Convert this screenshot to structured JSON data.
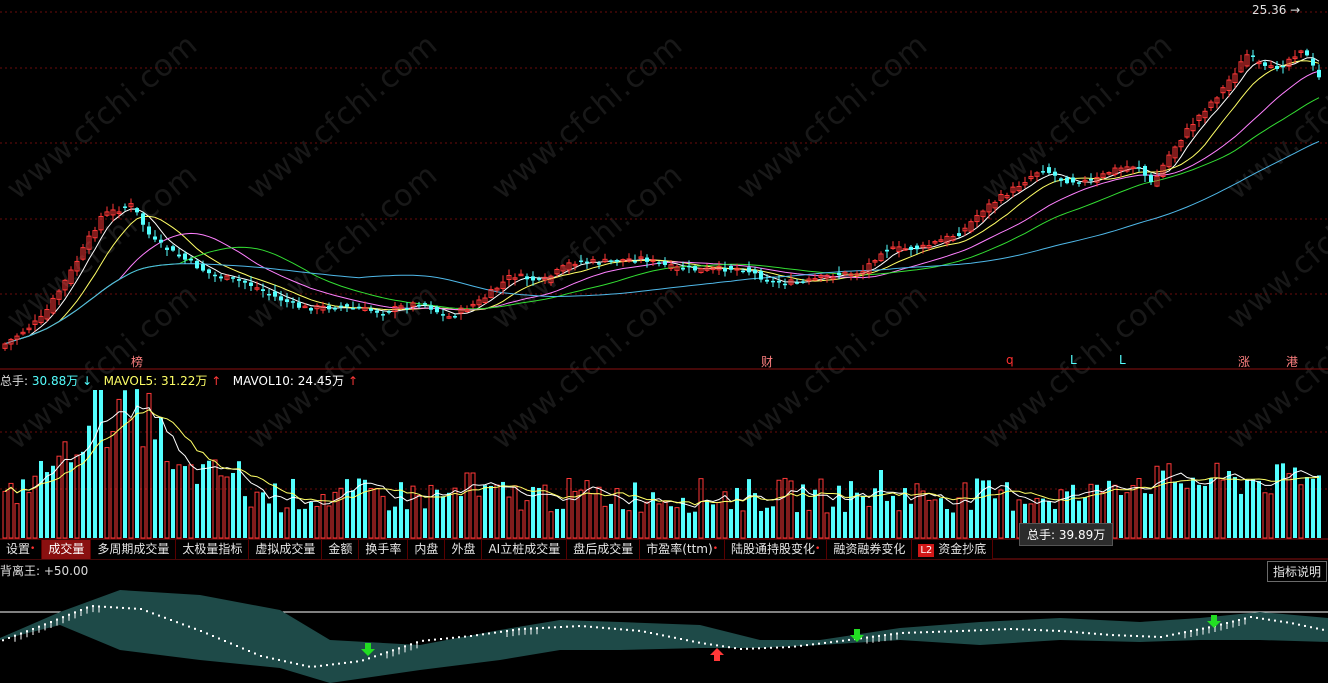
{
  "watermark": "www.cfchi.com",
  "price_panel": {
    "high_label": "25.36",
    "markers": [
      "榜",
      "财",
      "q",
      "L",
      "L",
      "涨",
      "港"
    ]
  },
  "volume_panel": {
    "legend": {
      "total_label": "总手:",
      "total_value": "30.88万",
      "total_arrow": "↓",
      "mavol5_label": "MAVOL5:",
      "mavol5_value": "31.22万",
      "mavol5_arrow": "↑",
      "mavol10_label": "MAVOL10:",
      "mavol10_value": "24.45万",
      "mavol10_arrow": "↑"
    },
    "tooltip": "总手: 39.89万"
  },
  "tabs": [
    {
      "label": "设置",
      "dot": true,
      "active": false
    },
    {
      "label": "成交量",
      "dot": false,
      "active": true
    },
    {
      "label": "多周期成交量",
      "dot": false,
      "active": false
    },
    {
      "label": "太极量指标",
      "dot": false,
      "active": false
    },
    {
      "label": "虚拟成交量",
      "dot": false,
      "active": false
    },
    {
      "label": "金额",
      "dot": false,
      "active": false
    },
    {
      "label": "换手率",
      "dot": false,
      "active": false
    },
    {
      "label": "内盘",
      "dot": false,
      "active": false
    },
    {
      "label": "外盘",
      "dot": false,
      "active": false
    },
    {
      "label": "AI立桩成交量",
      "dot": false,
      "active": false
    },
    {
      "label": "盘后成交量",
      "dot": false,
      "active": false
    },
    {
      "label": "市盈率(ttm)",
      "dot": true,
      "active": false
    },
    {
      "label": "陆股通持股变化",
      "dot": true,
      "active": false
    },
    {
      "label": "融资融券变化",
      "dot": false,
      "active": false
    },
    {
      "label": "资金抄底",
      "dot": false,
      "active": false,
      "badge": "L2"
    }
  ],
  "indicator_panel": {
    "title": "背离王: +50.00",
    "help_button": "指标说明"
  },
  "colors": {
    "up": "#ff3838",
    "down": "#54ffff",
    "ma5": "#ffffff",
    "ma10": "#ffff66",
    "ma20": "#ff80ff",
    "ma30": "#33dd33",
    "ma60": "#4fb8e8",
    "volma5": "#ffffff",
    "volma10": "#ffff66",
    "grid": "#6a0c0c"
  }
}
